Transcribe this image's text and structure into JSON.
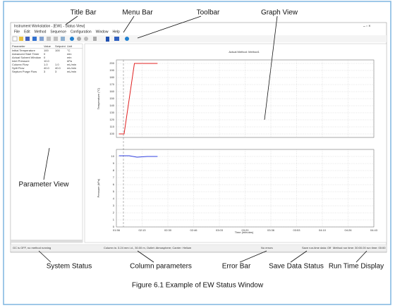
{
  "callouts": {
    "title_bar": "Title Bar",
    "menu_bar": "Menu Bar",
    "toolbar": "Toolbar",
    "graph_view": "Graph View",
    "parameter_view": "Parameter View",
    "system_status": "System Status",
    "column_parameters": "Column parameters",
    "error_bar": "Error Bar",
    "save_data_status": "Save Data Status",
    "run_time_display": "Run Time Display"
  },
  "caption": "Figure 6.1 Example of EW Status Window",
  "window": {
    "title": "Instrument Workstation - [EW1 - Status View]",
    "menu": [
      "File",
      "Edit",
      "Method",
      "Sequence",
      "Configuration",
      "Window",
      "Help"
    ],
    "parameters": {
      "header": [
        "Parameter",
        "Value",
        "Setpoint",
        "Unit"
      ],
      "rows": [
        [
          "Initial Temperature",
          "100",
          "100",
          "°C"
        ],
        [
          "Advanced Start Timer",
          "0",
          "",
          "min"
        ],
        [
          "Actual Solvent Window",
          "0",
          "",
          "min"
        ],
        [
          "Inlet Pressure",
          "10.0",
          "",
          "kPa"
        ],
        [
          "Column Flow",
          "1.0",
          "1.0",
          "mL/min"
        ],
        [
          "Split Flow",
          "40.0",
          "40.0",
          "mL/min"
        ],
        [
          "Septum Purge Flow",
          "3",
          "3",
          "mL/min"
        ]
      ]
    },
    "status": {
      "system": "GC is OFF, no method running",
      "column": "Column is: 3.24 mm i.d., 30.00 m, Outlet: Atmosphere; Carrier: Helium",
      "error": "No errors",
      "save": "Save run-time data: Off",
      "run_time": "Method run time: 30:00.00  run time: 00:00"
    }
  },
  "chart_data": [
    {
      "type": "line",
      "title": "Actual Method: Method1",
      "ylabel": "Temperature (°C)",
      "ylim": [
        95,
        205
      ],
      "yticks": [
        100,
        110,
        120,
        130,
        140,
        150,
        160,
        170,
        180,
        190,
        200
      ],
      "xlim": [
        0,
        10
      ],
      "series": [
        {
          "name": "Temperature",
          "color": "#e02020",
          "x": [
            0.1,
            0.3,
            0.7,
            1.6
          ],
          "values": [
            100,
            100,
            200,
            200
          ]
        }
      ],
      "grid": true
    },
    {
      "type": "line",
      "ylabel": "Pressure (kPa)",
      "xlabel": "Time (minutes)",
      "ylim": [
        0,
        11
      ],
      "yticks": [
        0,
        1,
        2,
        3,
        4,
        5,
        6,
        7,
        8,
        9,
        10
      ],
      "xlim": [
        0,
        10
      ],
      "xticks": [
        {
          "value": 0,
          "label": "01:56"
        },
        {
          "value": 1,
          "label": "02:13"
        },
        {
          "value": 2,
          "label": "02:30"
        },
        {
          "value": 3,
          "label": "02:46"
        },
        {
          "value": 4,
          "label": "03:03"
        },
        {
          "value": 5,
          "label": "03:20"
        },
        {
          "value": 6,
          "label": "03:36"
        },
        {
          "value": 7,
          "label": "03:53"
        },
        {
          "value": 8,
          "label": "04:10"
        },
        {
          "value": 9,
          "label": "04:26"
        },
        {
          "value": 10,
          "label": "04:43"
        }
      ],
      "series": [
        {
          "name": "Pressure",
          "color": "#3040e0",
          "x": [
            0.1,
            0.5,
            0.8,
            1.2,
            1.6
          ],
          "values": [
            10.1,
            10.1,
            9.9,
            10.0,
            10.0
          ]
        }
      ],
      "grid": true
    }
  ]
}
